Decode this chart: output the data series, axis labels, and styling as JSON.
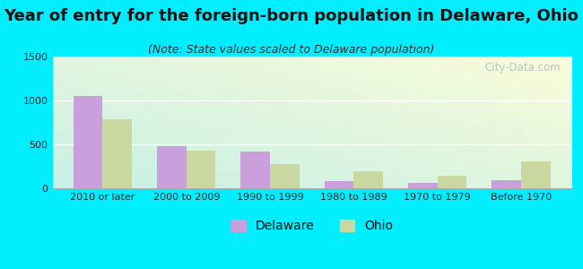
{
  "title": "Year of entry for the foreign-born population in Delaware, Ohio",
  "subtitle": "(Note: State values scaled to Delaware population)",
  "categories": [
    "2010 or later",
    "2000 to 2009",
    "1990 to 1999",
    "1980 to 1989",
    "1970 to 1979",
    "Before 1970"
  ],
  "delaware_values": [
    1050,
    480,
    420,
    80,
    65,
    95
  ],
  "ohio_values": [
    790,
    430,
    280,
    195,
    145,
    310
  ],
  "delaware_color": "#c9a0dc",
  "ohio_color": "#c8d8a0",
  "background_color": "#00eeff",
  "ylim": [
    0,
    1500
  ],
  "yticks": [
    0,
    500,
    1000,
    1500
  ],
  "title_fontsize": 13,
  "subtitle_fontsize": 9,
  "tick_fontsize": 8,
  "legend_fontsize": 10,
  "bar_width": 0.35,
  "watermark": "City-Data.com"
}
